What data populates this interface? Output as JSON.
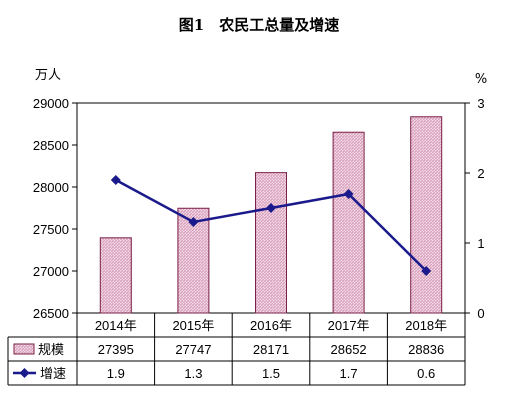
{
  "title": "图1　农民工总量及增速",
  "chart_data": {
    "type": "bar",
    "categories": [
      "2014年",
      "2015年",
      "2016年",
      "2017年",
      "2018年"
    ],
    "left_axis": {
      "unit": "万人",
      "ylim": [
        26500,
        29000
      ],
      "ticks": [
        "26500",
        "27000",
        "27500",
        "28000",
        "28500",
        "29000"
      ]
    },
    "right_axis": {
      "unit": "%",
      "ylim": [
        0,
        3
      ],
      "ticks": [
        "0",
        "1",
        "2",
        "3"
      ]
    },
    "series": [
      {
        "name": "规模",
        "kind": "bar",
        "axis": "left",
        "values": [
          27395,
          27747,
          28171,
          28652,
          28836
        ]
      },
      {
        "name": "增速",
        "kind": "line",
        "axis": "right",
        "values": [
          1.9,
          1.3,
          1.5,
          1.7,
          0.6
        ]
      }
    ],
    "table_values": [
      [
        "27395",
        "27747",
        "28171",
        "28652",
        "28836"
      ],
      [
        "1.9",
        "1.3",
        "1.5",
        "1.7",
        "0.6"
      ]
    ],
    "colors": {
      "bar_fill": "#d9a1bc",
      "bar_stroke": "#7a1f47",
      "line": "#1a1a8c"
    }
  }
}
